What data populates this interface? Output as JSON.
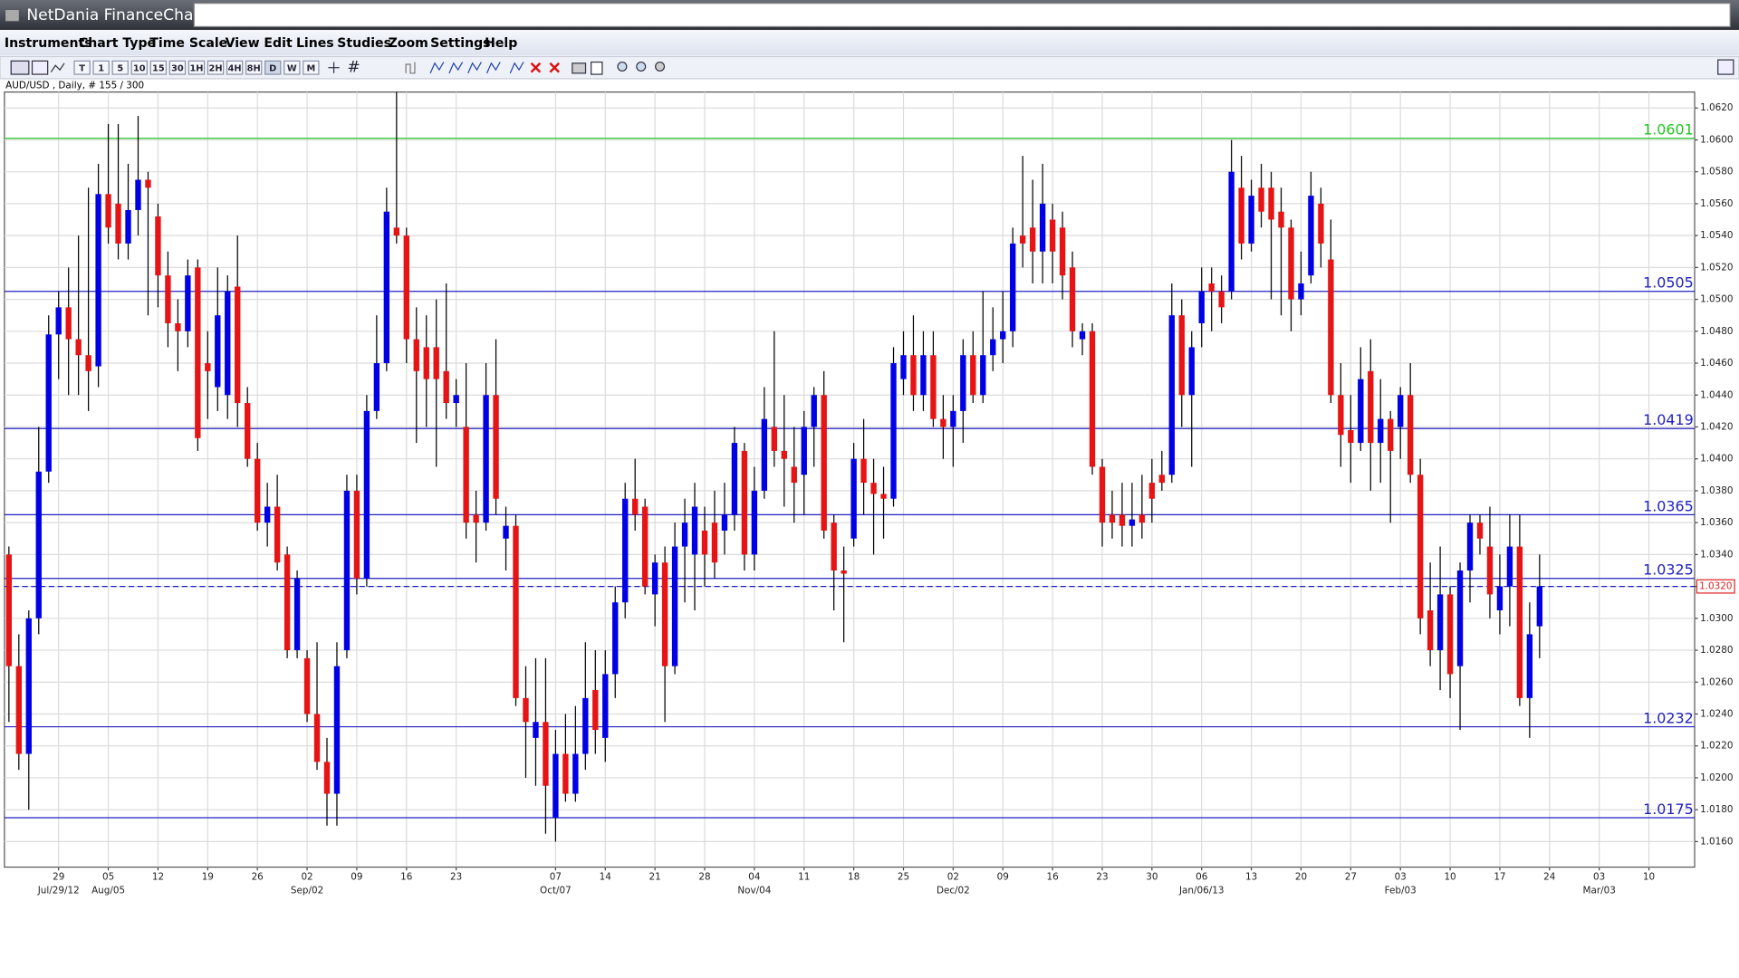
{
  "app": {
    "title": "NetDania FinanceChart",
    "menu": [
      "Instruments",
      "Chart Type",
      "Time Scale",
      "View",
      "Edit",
      "Lines",
      "Studies",
      "Zoom",
      "Settings",
      "Help"
    ],
    "timeframes": [
      "T",
      "1",
      "5",
      "10",
      "15",
      "30",
      "1H",
      "2H",
      "4H",
      "8H",
      "D",
      "W",
      "M"
    ]
  },
  "chart_data": {
    "type": "candlestick",
    "title": "AUD/USD , Daily, # 155 / 300",
    "up_color": "#0000e6",
    "down_color": "#e61414",
    "grid": true,
    "xlim": [
      -0.45,
      169.6
    ],
    "ylim": [
      1.0144,
      1.063
    ],
    "yticks": [
      {
        "value": 1.062,
        "label": "1.0620"
      },
      {
        "value": 1.06,
        "label": "1.0600"
      },
      {
        "value": 1.058,
        "label": "1.0580"
      },
      {
        "value": 1.056,
        "label": "1.0560"
      },
      {
        "value": 1.054,
        "label": "1.0540"
      },
      {
        "value": 1.052,
        "label": "1.0520"
      },
      {
        "value": 1.05,
        "label": "1.0500"
      },
      {
        "value": 1.048,
        "label": "1.0480"
      },
      {
        "value": 1.046,
        "label": "1.0460"
      },
      {
        "value": 1.044,
        "label": "1.0440"
      },
      {
        "value": 1.042,
        "label": "1.0420"
      },
      {
        "value": 1.04,
        "label": "1.0400"
      },
      {
        "value": 1.038,
        "label": "1.0380"
      },
      {
        "value": 1.036,
        "label": "1.0360"
      },
      {
        "value": 1.034,
        "label": "1.0340"
      },
      {
        "value": 1.032,
        "label": "1.0320"
      },
      {
        "value": 1.03,
        "label": "1.0300"
      },
      {
        "value": 1.028,
        "label": "1.0280"
      },
      {
        "value": 1.026,
        "label": "1.0260"
      },
      {
        "value": 1.024,
        "label": "1.0240"
      },
      {
        "value": 1.022,
        "label": "1.0220"
      },
      {
        "value": 1.02,
        "label": "1.0200"
      },
      {
        "value": 1.018,
        "label": "1.0180"
      },
      {
        "value": 1.016,
        "label": "1.0160"
      }
    ],
    "xticks": [
      {
        "value": 5,
        "label": "29"
      },
      {
        "value": 10,
        "label": "05"
      },
      {
        "value": 15,
        "label": "12"
      },
      {
        "value": 20,
        "label": "19"
      },
      {
        "value": 25,
        "label": "26"
      },
      {
        "value": 30,
        "label": "02"
      },
      {
        "value": 35,
        "label": "09"
      },
      {
        "value": 40,
        "label": "16"
      },
      {
        "value": 45,
        "label": "23"
      },
      {
        "value": 55,
        "label": "07"
      },
      {
        "value": 60,
        "label": "14"
      },
      {
        "value": 65,
        "label": "21"
      },
      {
        "value": 70,
        "label": "28"
      },
      {
        "value": 75,
        "label": "04"
      },
      {
        "value": 80,
        "label": "11"
      },
      {
        "value": 85,
        "label": "18"
      },
      {
        "value": 90,
        "label": "25"
      },
      {
        "value": 95,
        "label": "02"
      },
      {
        "value": 100,
        "label": "09"
      },
      {
        "value": 105,
        "label": "16"
      },
      {
        "value": 110,
        "label": "23"
      },
      {
        "value": 115,
        "label": "30"
      },
      {
        "value": 120,
        "label": "06"
      },
      {
        "value": 125,
        "label": "13"
      },
      {
        "value": 130,
        "label": "20"
      },
      {
        "value": 135,
        "label": "27"
      },
      {
        "value": 140,
        "label": "03"
      },
      {
        "value": 145,
        "label": "10"
      },
      {
        "value": 150,
        "label": "17"
      },
      {
        "value": 155,
        "label": "24"
      },
      {
        "value": 160,
        "label": "03"
      },
      {
        "value": 165,
        "label": "10"
      }
    ],
    "xticks_month": [
      {
        "value": 5,
        "label": "Jul/29/12"
      },
      {
        "value": 10,
        "label": "Aug/05"
      },
      {
        "value": 30,
        "label": "Sep/02"
      },
      {
        "value": 55,
        "label": "Oct/07"
      },
      {
        "value": 75,
        "label": "Nov/04"
      },
      {
        "value": 95,
        "label": "Dec/02"
      },
      {
        "value": 120,
        "label": "Jan/06/13"
      },
      {
        "value": 140,
        "label": "Feb/03"
      },
      {
        "value": 160,
        "label": "Mar/03"
      }
    ],
    "levels": [
      {
        "value": 1.0601,
        "color": "#22c422"
      },
      {
        "value": 1.0505,
        "color": "#2020c0"
      },
      {
        "value": 1.0419,
        "color": "#2020c0"
      },
      {
        "value": 1.0365,
        "color": "#2020c0"
      },
      {
        "value": 1.0325,
        "color": "#2020c0"
      },
      {
        "value": 1.0232,
        "color": "#2020c0"
      },
      {
        "value": 1.0175,
        "color": "#2020c0"
      }
    ],
    "last": {
      "value": 1.032,
      "label": "1.0320"
    },
    "open": [
      1.034,
      1.027,
      1.0215,
      1.03,
      1.0392,
      1.0478,
      1.0495,
      1.0475,
      1.0465,
      1.0458,
      1.0566,
      1.056,
      1.0535,
      1.0556,
      1.0575,
      1.0552,
      1.0515,
      1.0485,
      1.048,
      1.052,
      1.046,
      1.0445,
      1.044,
      1.0508,
      1.0435,
      1.04,
      1.036,
      1.037,
      1.034,
      1.028,
      1.0275,
      1.024,
      1.021,
      1.019,
      1.028,
      1.038,
      1.0325,
      1.043,
      1.046,
      1.0545,
      1.054,
      1.0475,
      1.047,
      1.047,
      1.0455,
      1.0435,
      1.042,
      1.0365,
      1.036,
      1.044,
      1.035,
      1.0358,
      1.025,
      1.0225,
      1.0235,
      1.0175,
      1.0215,
      1.019,
      1.0215,
      1.0255,
      1.0225,
      1.0265,
      1.031,
      1.0375,
      1.037,
      1.0315,
      1.0335,
      1.027,
      1.0345,
      1.034,
      1.0355,
      1.036,
      1.0355,
      1.0365,
      1.0405,
      1.034,
      1.038,
      1.042,
      1.0405,
      1.0395,
      1.039,
      1.042,
      1.044,
      1.036,
      1.033,
      1.035,
      1.04,
      1.0385,
      1.0378,
      1.0375,
      1.045,
      1.0465,
      1.044,
      1.0465,
      1.0425,
      1.042,
      1.043,
      1.0465,
      1.044,
      1.0465,
      1.0475,
      1.048,
      1.054,
      1.0545,
      1.053,
      1.055,
      1.0545,
      1.052,
      1.0475,
      1.048,
      1.0395,
      1.0365,
      1.0365,
      1.0358,
      1.0365,
      1.0385,
      1.039,
      1.039,
      1.049,
      1.044,
      1.0485,
      1.051,
      1.0505,
      1.0505,
      1.057,
      1.0535,
      1.057,
      1.057,
      1.0555,
      1.0545,
      1.05,
      1.0515,
      1.056,
      1.0525,
      1.044,
      1.0418,
      1.041,
      1.0455,
      1.041,
      1.0425,
      1.042,
      1.044,
      1.039,
      1.0305,
      1.028,
      1.0315,
      1.027,
      1.033,
      1.036,
      1.0345,
      1.0305,
      1.032,
      1.0345,
      1.025,
      1.0295
    ],
    "high": [
      1.0345,
      1.029,
      1.0305,
      1.042,
      1.049,
      1.0505,
      1.052,
      1.054,
      1.057,
      1.0585,
      1.061,
      1.061,
      1.0585,
      1.0615,
      1.058,
      1.056,
      1.053,
      1.05,
      1.0525,
      1.0525,
      1.048,
      1.052,
      1.0515,
      1.054,
      1.0445,
      1.041,
      1.0385,
      1.039,
      1.0345,
      1.033,
      1.028,
      1.0285,
      1.0225,
      1.0285,
      1.039,
      1.039,
      1.044,
      1.049,
      1.057,
      1.063,
      1.0545,
      1.0495,
      1.049,
      1.05,
      1.051,
      1.045,
      1.046,
      1.038,
      1.046,
      1.0475,
      1.037,
      1.0365,
      1.027,
      1.0275,
      1.0275,
      1.023,
      1.024,
      1.0245,
      1.0285,
      1.028,
      1.028,
      1.032,
      1.0385,
      1.04,
      1.0375,
      1.034,
      1.0345,
      1.036,
      1.0375,
      1.0385,
      1.037,
      1.038,
      1.0385,
      1.042,
      1.041,
      1.0395,
      1.0445,
      1.048,
      1.044,
      1.042,
      1.043,
      1.0445,
      1.0455,
      1.0365,
      1.0345,
      1.041,
      1.0425,
      1.04,
      1.0395,
      1.047,
      1.048,
      1.049,
      1.048,
      1.048,
      1.044,
      1.044,
      1.0475,
      1.048,
      1.0505,
      1.0495,
      1.0505,
      1.0545,
      1.059,
      1.0575,
      1.0585,
      1.056,
      1.0555,
      1.053,
      1.0485,
      1.0485,
      1.04,
      1.038,
      1.0385,
      1.0385,
      1.039,
      1.04,
      1.0405,
      1.051,
      1.05,
      1.048,
      1.052,
      1.052,
      1.0515,
      1.06,
      1.059,
      1.0575,
      1.0585,
      1.058,
      1.057,
      1.055,
      1.053,
      1.058,
      1.057,
      1.055,
      1.046,
      1.044,
      1.047,
      1.0475,
      1.045,
      1.043,
      1.0445,
      1.046,
      1.04,
      1.0335,
      1.0345,
      1.032,
      1.0335,
      1.0365,
      1.0365,
      1.037,
      1.034,
      1.0365,
      1.0365,
      1.031,
      1.034
    ],
    "low": [
      1.0235,
      1.0205,
      1.018,
      1.029,
      1.0385,
      1.045,
      1.044,
      1.044,
      1.043,
      1.0445,
      1.0535,
      1.0525,
      1.0525,
      1.054,
      1.049,
      1.0495,
      1.047,
      1.0455,
      1.047,
      1.0405,
      1.0425,
      1.043,
      1.0425,
      1.042,
      1.0395,
      1.0355,
      1.0345,
      1.033,
      1.0275,
      1.0275,
      1.0235,
      1.0205,
      1.017,
      1.017,
      1.0275,
      1.0315,
      1.032,
      1.0425,
      1.0455,
      1.0535,
      1.046,
      1.041,
      1.042,
      1.0395,
      1.0425,
      1.042,
      1.035,
      1.0335,
      1.0355,
      1.0365,
      1.033,
      1.0245,
      1.02,
      1.0195,
      1.0165,
      1.016,
      1.0185,
      1.0185,
      1.0205,
      1.0215,
      1.021,
      1.025,
      1.03,
      1.0355,
      1.0315,
      1.0295,
      1.0235,
      1.0265,
      1.031,
      1.0305,
      1.032,
      1.0325,
      1.034,
      1.0355,
      1.033,
      1.033,
      1.0375,
      1.0395,
      1.037,
      1.036,
      1.0365,
      1.0395,
      1.035,
      1.0305,
      1.0285,
      1.0345,
      1.0365,
      1.034,
      1.035,
      1.037,
      1.044,
      1.043,
      1.043,
      1.042,
      1.04,
      1.0395,
      1.041,
      1.0435,
      1.0435,
      1.0455,
      1.046,
      1.047,
      1.052,
      1.051,
      1.051,
      1.051,
      1.05,
      1.047,
      1.0465,
      1.039,
      1.0345,
      1.035,
      1.0345,
      1.0345,
      1.035,
      1.036,
      1.038,
      1.0385,
      1.042,
      1.0395,
      1.047,
      1.048,
      1.0485,
      1.05,
      1.0525,
      1.053,
      1.0545,
      1.05,
      1.049,
      1.048,
      1.049,
      1.051,
      1.052,
      1.0435,
      1.0395,
      1.0385,
      1.0405,
      1.038,
      1.0385,
      1.036,
      1.04,
      1.0385,
      1.029,
      1.027,
      1.0255,
      1.025,
      1.023,
      1.031,
      1.034,
      1.03,
      1.029,
      1.0295,
      1.0245,
      1.0225,
      1.0275
    ],
    "close": [
      1.027,
      1.0215,
      1.03,
      1.0392,
      1.0478,
      1.0495,
      1.0475,
      1.0465,
      1.0455,
      1.0566,
      1.0545,
      1.0535,
      1.0556,
      1.0575,
      1.057,
      1.0515,
      1.0485,
      1.048,
      1.0515,
      1.0413,
      1.0455,
      1.049,
      1.0505,
      1.0435,
      1.04,
      1.036,
      1.037,
      1.0335,
      1.028,
      1.0325,
      1.024,
      1.021,
      1.019,
      1.027,
      1.038,
      1.0325,
      1.043,
      1.046,
      1.0555,
      1.054,
      1.0475,
      1.0455,
      1.045,
      1.045,
      1.0435,
      1.044,
      1.036,
      1.036,
      1.044,
      1.0375,
      1.0358,
      1.025,
      1.0235,
      1.0235,
      1.0195,
      1.0215,
      1.019,
      1.0215,
      1.025,
      1.023,
      1.0265,
      1.031,
      1.0375,
      1.0365,
      1.032,
      1.0335,
      1.027,
      1.0345,
      1.036,
      1.037,
      1.034,
      1.0335,
      1.0365,
      1.041,
      1.034,
      1.038,
      1.0425,
      1.0405,
      1.04,
      1.0385,
      1.042,
      1.044,
      1.0355,
      1.033,
      1.0328,
      1.04,
      1.0385,
      1.0378,
      1.0375,
      1.046,
      1.0465,
      1.044,
      1.0465,
      1.0425,
      1.042,
      1.043,
      1.0465,
      1.044,
      1.0465,
      1.0475,
      1.048,
      1.0535,
      1.0535,
      1.053,
      1.056,
      1.053,
      1.0515,
      1.048,
      1.048,
      1.0395,
      1.036,
      1.036,
      1.0358,
      1.0362,
      1.036,
      1.0375,
      1.0385,
      1.049,
      1.044,
      1.047,
      1.0505,
      1.0505,
      1.0495,
      1.058,
      1.0535,
      1.0565,
      1.0555,
      1.055,
      1.0545,
      1.05,
      1.051,
      1.0565,
      1.0535,
      1.044,
      1.0415,
      1.041,
      1.045,
      1.041,
      1.0425,
      1.0405,
      1.044,
      1.039,
      1.03,
      1.028,
      1.0315,
      1.0265,
      1.033,
      1.036,
      1.035,
      1.0315,
      1.032,
      1.0345,
      1.025,
      1.029,
      1.032
    ]
  }
}
